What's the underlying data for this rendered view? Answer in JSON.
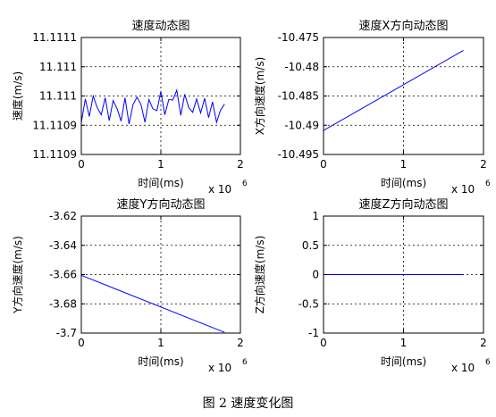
{
  "chart_data": [
    {
      "type": "line",
      "title": "速度动态图",
      "xlabel": "时间(ms)",
      "ylabel": "速度(m/s)",
      "x_multiplier": "x 10",
      "x_exponent": "6",
      "xlim": [
        0,
        2
      ],
      "ylim": [
        11.1109,
        11.1111
      ],
      "xticks": [
        "0",
        "1",
        "2"
      ],
      "yticks": [
        "11.1111",
        "11.111",
        "11.111",
        "11.1109",
        "11.1109"
      ],
      "ytick_values": [
        11.1111,
        11.11105,
        11.111,
        11.11095,
        11.1109
      ],
      "grid": true,
      "series_color": "#0000ff",
      "series": [
        {
          "x": [
            0,
            0.05,
            0.1,
            0.15,
            0.2,
            0.25,
            0.3,
            0.35,
            0.4,
            0.45,
            0.5,
            0.55,
            0.6,
            0.65,
            0.7,
            0.75,
            0.8,
            0.85,
            0.9,
            0.95,
            1.0,
            1.05,
            1.1,
            1.15,
            1.2,
            1.25,
            1.3,
            1.35,
            1.4,
            1.45,
            1.5,
            1.55,
            1.6,
            1.65,
            1.7,
            1.75,
            1.8
          ],
          "y": [
            11.110955,
            11.110995,
            11.110965,
            11.111,
            11.11098,
            11.110968,
            11.110997,
            11.110958,
            11.110992,
            11.110978,
            11.110957,
            11.110997,
            11.110952,
            11.110985,
            11.110998,
            11.110985,
            11.110955,
            11.110994,
            11.110978,
            11.110975,
            11.111008,
            11.110968,
            11.110994,
            11.110993,
            11.11101,
            11.110967,
            11.111003,
            11.11098,
            11.110972,
            11.110995,
            11.110971,
            11.110996,
            11.110963,
            11.11099,
            11.110955,
            11.110976,
            11.110986
          ]
        }
      ]
    },
    {
      "type": "line",
      "title": "速度X方向动态图",
      "xlabel": "时间(ms)",
      "ylabel": "X方向速度(m/s)",
      "x_multiplier": "x 10",
      "x_exponent": "6",
      "xlim": [
        0,
        2
      ],
      "ylim": [
        -10.495,
        -10.475
      ],
      "xticks": [
        "0",
        "1",
        "2"
      ],
      "yticks": [
        "-10.475",
        "-10.48",
        "-10.485",
        "-10.49",
        "-10.495"
      ],
      "ytick_values": [
        -10.475,
        -10.48,
        -10.485,
        -10.49,
        -10.495
      ],
      "grid": true,
      "series_color": "#0000ff",
      "series": [
        {
          "x": [
            0,
            1.75
          ],
          "y": [
            -10.4909,
            -10.4772
          ]
        }
      ]
    },
    {
      "type": "line",
      "title": "速度Y方向动态图",
      "xlabel": "时间(ms)",
      "ylabel": "Y方向速度(m/s)",
      "x_multiplier": "x 10",
      "x_exponent": "6",
      "xlim": [
        0,
        2
      ],
      "ylim": [
        -3.7,
        -3.62
      ],
      "xticks": [
        "0",
        "1",
        "2"
      ],
      "yticks": [
        "-3.62",
        "-3.64",
        "-3.66",
        "-3.68",
        "-3.7"
      ],
      "ytick_values": [
        -3.62,
        -3.64,
        -3.66,
        -3.68,
        -3.7
      ],
      "grid": true,
      "series_color": "#0000ff",
      "series": [
        {
          "x": [
            0,
            1.8
          ],
          "y": [
            -3.6605,
            -3.6995
          ]
        }
      ]
    },
    {
      "type": "line",
      "title": "速度Z方向动态图",
      "xlabel": "时间(ms)",
      "ylabel": "Z方向速度(m/s)",
      "x_multiplier": "x 10",
      "x_exponent": "6",
      "xlim": [
        0,
        2
      ],
      "ylim": [
        -1,
        1
      ],
      "xticks": [
        "0",
        "1",
        "2"
      ],
      "yticks": [
        "1",
        "0.5",
        "0",
        "-0.5",
        "-1"
      ],
      "ytick_values": [
        1,
        0.5,
        0,
        -0.5,
        -1
      ],
      "grid": true,
      "series_color": "#0000ff",
      "series": [
        {
          "x": [
            0,
            1.75
          ],
          "y": [
            0,
            0
          ]
        }
      ]
    }
  ],
  "figure_caption": "图 2  速度变化图"
}
